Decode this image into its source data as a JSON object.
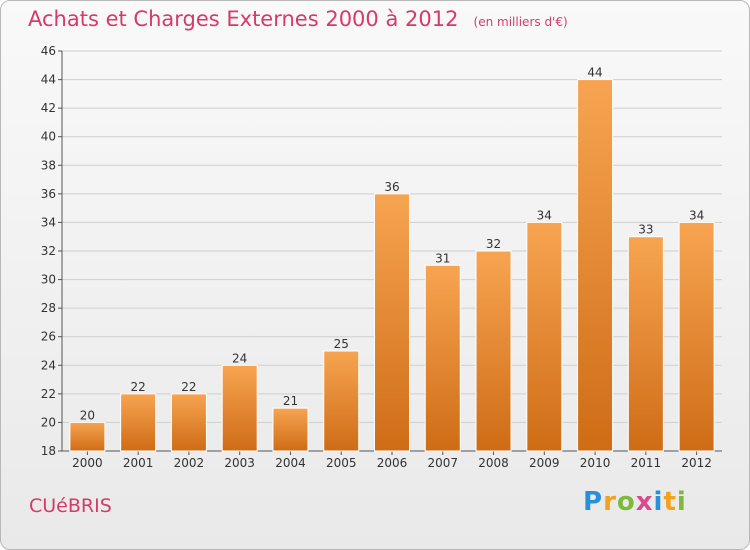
{
  "header": {
    "title": "Achats et Charges Externes 2000 à 2012",
    "subtitle": "(en milliers d'€)"
  },
  "footer": {
    "commune": "CUéBRIS",
    "logo_text": "Proxiti"
  },
  "colors": {
    "title": "#d63a6a",
    "bar_light": "#f7a451",
    "bar_dark": "#cf6c16",
    "grid": "#cfcfcf"
  },
  "chart_data": {
    "type": "bar",
    "title": "Achats et Charges Externes 2000 à 2012",
    "subtitle": "(en milliers d'€)",
    "xlabel": "",
    "ylabel": "",
    "categories": [
      "2000",
      "2001",
      "2002",
      "2003",
      "2004",
      "2005",
      "2006",
      "2007",
      "2008",
      "2009",
      "2010",
      "2011",
      "2012"
    ],
    "values": [
      20,
      22,
      22,
      24,
      21,
      25,
      36,
      31,
      32,
      34,
      44,
      33,
      34
    ],
    "ylim": [
      18,
      46
    ],
    "yticks": [
      18,
      20,
      22,
      24,
      26,
      28,
      30,
      32,
      34,
      36,
      38,
      40,
      42,
      44,
      46
    ],
    "grid": true,
    "legend": "none"
  }
}
